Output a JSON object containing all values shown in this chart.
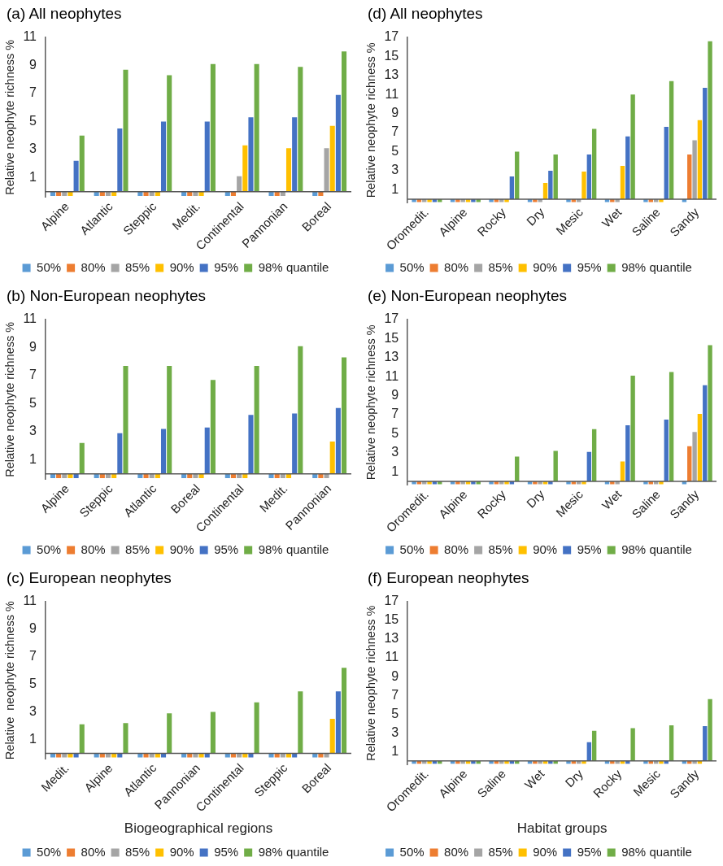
{
  "chart_data": [
    {
      "type": "bar",
      "title": "(a) All neophytes",
      "ylabel": "Relative neophyte richness %",
      "categories": [
        "Alpine",
        "Atlantic",
        "Steppic",
        "Medit.",
        "Continental",
        "Pannonian",
        "Boreal"
      ],
      "ylim": [
        -0.4,
        11
      ],
      "yticks": [
        1,
        3,
        5,
        7,
        9,
        11
      ],
      "grid": false,
      "legend": "bottom",
      "series": [
        {
          "name": "50%",
          "color": "#5b9bd5",
          "values": [
            -0.3,
            -0.3,
            -0.3,
            -0.3,
            -0.3,
            -0.3,
            -0.3
          ]
        },
        {
          "name": "80%",
          "color": "#ed7d31",
          "values": [
            -0.3,
            -0.3,
            -0.3,
            -0.3,
            -0.3,
            -0.3,
            -0.3
          ]
        },
        {
          "name": "85%",
          "color": "#a5a5a5",
          "values": [
            -0.3,
            -0.3,
            -0.3,
            -0.3,
            1.1,
            -0.3,
            3.1
          ]
        },
        {
          "name": "90%",
          "color": "#ffc000",
          "values": [
            -0.3,
            -0.3,
            -0.3,
            -0.3,
            3.3,
            3.1,
            4.7
          ]
        },
        {
          "name": "95%",
          "color": "#4472c4",
          "values": [
            2.2,
            4.5,
            5.0,
            5.0,
            5.3,
            5.3,
            6.9
          ]
        },
        {
          "name": "98% quantile",
          "color": "#70ad47",
          "values": [
            4.0,
            8.7,
            8.3,
            9.1,
            9.1,
            8.9,
            10.0
          ]
        }
      ]
    },
    {
      "type": "bar",
      "title": "(d) All neophytes",
      "ylabel": "Relative neophyte richness %",
      "categories": [
        "Oromedit.",
        "Alpine",
        "Rocky",
        "Dry",
        "Mesic",
        "Wet",
        "Saline",
        "Sandy"
      ],
      "ylim": [
        -0.4,
        17
      ],
      "yticks": [
        1,
        3,
        5,
        7,
        9,
        11,
        13,
        15,
        17
      ],
      "grid": false,
      "legend": "bottom",
      "series": [
        {
          "name": "50%",
          "color": "#5b9bd5",
          "values": [
            -0.3,
            -0.3,
            -0.3,
            -0.3,
            -0.3,
            -0.3,
            -0.3,
            -0.3
          ]
        },
        {
          "name": "80%",
          "color": "#ed7d31",
          "values": [
            -0.3,
            -0.3,
            -0.3,
            -0.3,
            -0.3,
            -0.3,
            -0.3,
            4.7
          ]
        },
        {
          "name": "85%",
          "color": "#a5a5a5",
          "values": [
            -0.3,
            -0.3,
            -0.3,
            -0.3,
            -0.3,
            -0.3,
            -0.3,
            6.2
          ]
        },
        {
          "name": "90%",
          "color": "#ffc000",
          "values": [
            -0.3,
            -0.3,
            -0.3,
            1.7,
            2.9,
            3.5,
            -0.3,
            8.3
          ]
        },
        {
          "name": "95%",
          "color": "#4472c4",
          "values": [
            -0.3,
            -0.3,
            2.4,
            3.0,
            4.7,
            6.6,
            7.6,
            11.7
          ]
        },
        {
          "name": "98% quantile",
          "color": "#70ad47",
          "values": [
            -0.3,
            -0.3,
            5.0,
            4.7,
            7.4,
            11.0,
            12.4,
            16.6
          ]
        }
      ]
    },
    {
      "type": "bar",
      "title": "(b) Non-European neophytes",
      "ylabel": "Relative neophyte richness %",
      "categories": [
        "Alpine",
        "Steppic",
        "Atlantic",
        "Boreal",
        "Continental",
        "Medit.",
        "Pannonian"
      ],
      "ylim": [
        -0.4,
        11
      ],
      "yticks": [
        1,
        3,
        5,
        7,
        9,
        11
      ],
      "grid": false,
      "legend": "bottom",
      "series": [
        {
          "name": "50%",
          "color": "#5b9bd5",
          "values": [
            -0.3,
            -0.3,
            -0.3,
            -0.3,
            -0.3,
            -0.3,
            -0.3
          ]
        },
        {
          "name": "80%",
          "color": "#ed7d31",
          "values": [
            -0.3,
            -0.3,
            -0.3,
            -0.3,
            -0.3,
            -0.3,
            -0.3
          ]
        },
        {
          "name": "85%",
          "color": "#a5a5a5",
          "values": [
            -0.3,
            -0.3,
            -0.3,
            -0.3,
            -0.3,
            -0.3,
            -0.3
          ]
        },
        {
          "name": "90%",
          "color": "#ffc000",
          "values": [
            -0.3,
            -0.3,
            -0.3,
            -0.3,
            -0.3,
            -0.3,
            2.3
          ]
        },
        {
          "name": "95%",
          "color": "#4472c4",
          "values": [
            -0.3,
            2.9,
            3.2,
            3.3,
            4.2,
            4.3,
            4.7
          ]
        },
        {
          "name": "98% quantile",
          "color": "#70ad47",
          "values": [
            2.2,
            7.7,
            7.7,
            6.7,
            7.7,
            9.1,
            8.3
          ]
        }
      ]
    },
    {
      "type": "bar",
      "title": "(e) Non-European neophytes",
      "ylabel": "Relative neophyte richness %",
      "categories": [
        "Oromedit.",
        "Alpine",
        "Rocky",
        "Dry",
        "Mesic",
        "Wet",
        "Saline",
        "Sandy"
      ],
      "ylim": [
        -0.4,
        17
      ],
      "yticks": [
        1,
        3,
        5,
        7,
        9,
        11,
        13,
        15,
        17
      ],
      "grid": false,
      "legend": "bottom",
      "series": [
        {
          "name": "50%",
          "color": "#5b9bd5",
          "values": [
            -0.3,
            -0.3,
            -0.3,
            -0.3,
            -0.3,
            -0.3,
            -0.3,
            -0.3
          ]
        },
        {
          "name": "80%",
          "color": "#ed7d31",
          "values": [
            -0.3,
            -0.3,
            -0.3,
            -0.3,
            -0.3,
            -0.3,
            -0.3,
            3.7
          ]
        },
        {
          "name": "85%",
          "color": "#a5a5a5",
          "values": [
            -0.3,
            -0.3,
            -0.3,
            -0.3,
            -0.3,
            -0.3,
            -0.3,
            5.2
          ]
        },
        {
          "name": "90%",
          "color": "#ffc000",
          "values": [
            -0.3,
            -0.3,
            -0.3,
            -0.3,
            -0.3,
            2.1,
            -0.3,
            7.1
          ]
        },
        {
          "name": "95%",
          "color": "#4472c4",
          "values": [
            -0.3,
            -0.3,
            -0.3,
            -0.3,
            3.1,
            5.9,
            6.5,
            10.1
          ]
        },
        {
          "name": "98% quantile",
          "color": "#70ad47",
          "values": [
            -0.3,
            -0.3,
            2.6,
            3.2,
            5.5,
            11.1,
            11.5,
            14.3
          ]
        }
      ]
    },
    {
      "type": "bar",
      "title": "(c) European neophytes",
      "xlabel": "Biogeographical regions",
      "ylabel": "Relative  neophyte richness %",
      "categories": [
        "Medit.",
        "Alpine",
        "Atlantic",
        "Pannonian",
        "Continental",
        "Steppic",
        "Boreal"
      ],
      "ylim": [
        -0.4,
        11
      ],
      "yticks": [
        1,
        3,
        5,
        7,
        9,
        11
      ],
      "grid": false,
      "legend": "bottom",
      "series": [
        {
          "name": "50%",
          "color": "#5b9bd5",
          "values": [
            -0.3,
            -0.3,
            -0.3,
            -0.3,
            -0.3,
            -0.3,
            -0.3
          ]
        },
        {
          "name": "80%",
          "color": "#ed7d31",
          "values": [
            -0.3,
            -0.3,
            -0.3,
            -0.3,
            -0.3,
            -0.3,
            -0.3
          ]
        },
        {
          "name": "85%",
          "color": "#a5a5a5",
          "values": [
            -0.3,
            -0.3,
            -0.3,
            -0.3,
            -0.3,
            -0.3,
            -0.3
          ]
        },
        {
          "name": "90%",
          "color": "#ffc000",
          "values": [
            -0.3,
            -0.3,
            -0.3,
            -0.3,
            -0.3,
            -0.3,
            2.5
          ]
        },
        {
          "name": "95%",
          "color": "#4472c4",
          "values": [
            -0.3,
            -0.3,
            -0.3,
            -0.3,
            -0.3,
            -0.3,
            4.5
          ]
        },
        {
          "name": "98% quantile",
          "color": "#70ad47",
          "values": [
            2.1,
            2.2,
            2.9,
            3.0,
            3.7,
            4.5,
            6.2
          ]
        }
      ]
    },
    {
      "type": "bar",
      "title": "(f) European neophytes",
      "xlabel": "Habitat groups",
      "ylabel": "Relative neophyte richness %",
      "categories": [
        "Oromedit.",
        "Alpine",
        "Saline",
        "Wet",
        "Dry",
        "Rocky",
        "Mesic",
        "Sandy"
      ],
      "ylim": [
        -0.4,
        17
      ],
      "yticks": [
        1,
        3,
        5,
        7,
        9,
        11,
        13,
        15,
        17
      ],
      "grid": false,
      "legend": "bottom",
      "series": [
        {
          "name": "50%",
          "color": "#5b9bd5",
          "values": [
            -0.3,
            -0.3,
            -0.3,
            -0.3,
            -0.3,
            -0.3,
            -0.3,
            -0.3
          ]
        },
        {
          "name": "80%",
          "color": "#ed7d31",
          "values": [
            -0.3,
            -0.3,
            -0.3,
            -0.3,
            -0.3,
            -0.3,
            -0.3,
            -0.3
          ]
        },
        {
          "name": "85%",
          "color": "#a5a5a5",
          "values": [
            -0.3,
            -0.3,
            -0.3,
            -0.3,
            -0.3,
            -0.3,
            -0.3,
            -0.3
          ]
        },
        {
          "name": "90%",
          "color": "#ffc000",
          "values": [
            -0.3,
            -0.3,
            -0.3,
            -0.3,
            -0.3,
            -0.3,
            -0.3,
            -0.3
          ]
        },
        {
          "name": "95%",
          "color": "#4472c4",
          "values": [
            -0.3,
            -0.3,
            -0.3,
            -0.3,
            2.0,
            -0.3,
            -0.3,
            3.7
          ]
        },
        {
          "name": "98% quantile",
          "color": "#70ad47",
          "values": [
            -0.3,
            -0.3,
            -0.3,
            -0.3,
            3.2,
            3.5,
            3.8,
            6.6
          ]
        }
      ]
    }
  ]
}
